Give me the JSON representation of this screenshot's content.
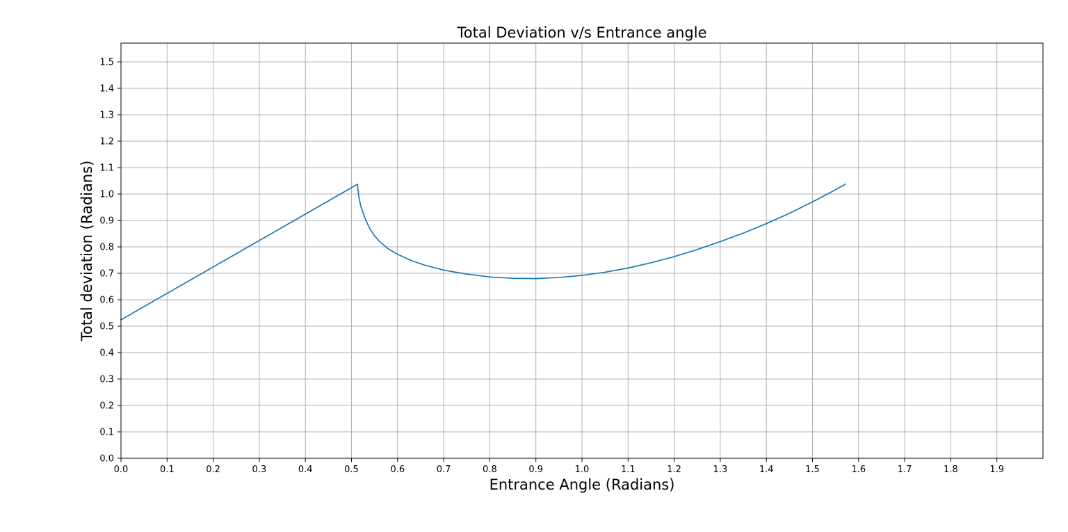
{
  "chart_data": {
    "type": "line",
    "title": "Total Deviation v/s Entrance angle",
    "xlabel": "Entrance Angle (Radians)",
    "ylabel": "Total deviation (Radians)",
    "xlim": [
      0.0,
      2.0
    ],
    "ylim": [
      0.0,
      1.571
    ],
    "xticks": [
      "0.0",
      "0.1",
      "0.2",
      "0.3",
      "0.4",
      "0.5",
      "0.6",
      "0.7",
      "0.8",
      "0.9",
      "1.0",
      "1.1",
      "1.2",
      "1.3",
      "1.4",
      "1.5",
      "1.6",
      "1.7",
      "1.8",
      "1.9"
    ],
    "yticks": [
      "0.0",
      "0.1",
      "0.2",
      "0.3",
      "0.4",
      "0.5",
      "0.6",
      "0.7",
      "0.8",
      "0.9",
      "1.0",
      "1.1",
      "1.2",
      "1.3",
      "1.4",
      "1.5"
    ],
    "grid": true,
    "series_color": "#1f77b4",
    "series": [
      {
        "x": [
          0.0,
          0.05,
          0.1,
          0.15,
          0.2,
          0.25,
          0.3,
          0.35,
          0.4,
          0.45,
          0.5,
          0.513,
          0.514,
          0.516,
          0.52,
          0.525,
          0.53,
          0.54,
          0.55,
          0.56,
          0.58,
          0.6,
          0.63,
          0.66,
          0.7,
          0.75,
          0.8,
          0.85,
          0.9,
          0.95,
          1.0,
          1.05,
          1.1,
          1.15,
          1.2,
          1.25,
          1.3,
          1.35,
          1.4,
          1.45,
          1.5,
          1.55,
          1.571
        ],
        "y": [
          0.524,
          0.574,
          0.624,
          0.674,
          0.724,
          0.774,
          0.824,
          0.874,
          0.924,
          0.974,
          1.024,
          1.037,
          1.02,
          0.99,
          0.955,
          0.93,
          0.905,
          0.868,
          0.842,
          0.822,
          0.792,
          0.772,
          0.748,
          0.73,
          0.712,
          0.697,
          0.686,
          0.681,
          0.68,
          0.684,
          0.692,
          0.704,
          0.72,
          0.74,
          0.763,
          0.79,
          0.82,
          0.852,
          0.888,
          0.927,
          0.97,
          1.016,
          1.037
        ]
      }
    ]
  }
}
